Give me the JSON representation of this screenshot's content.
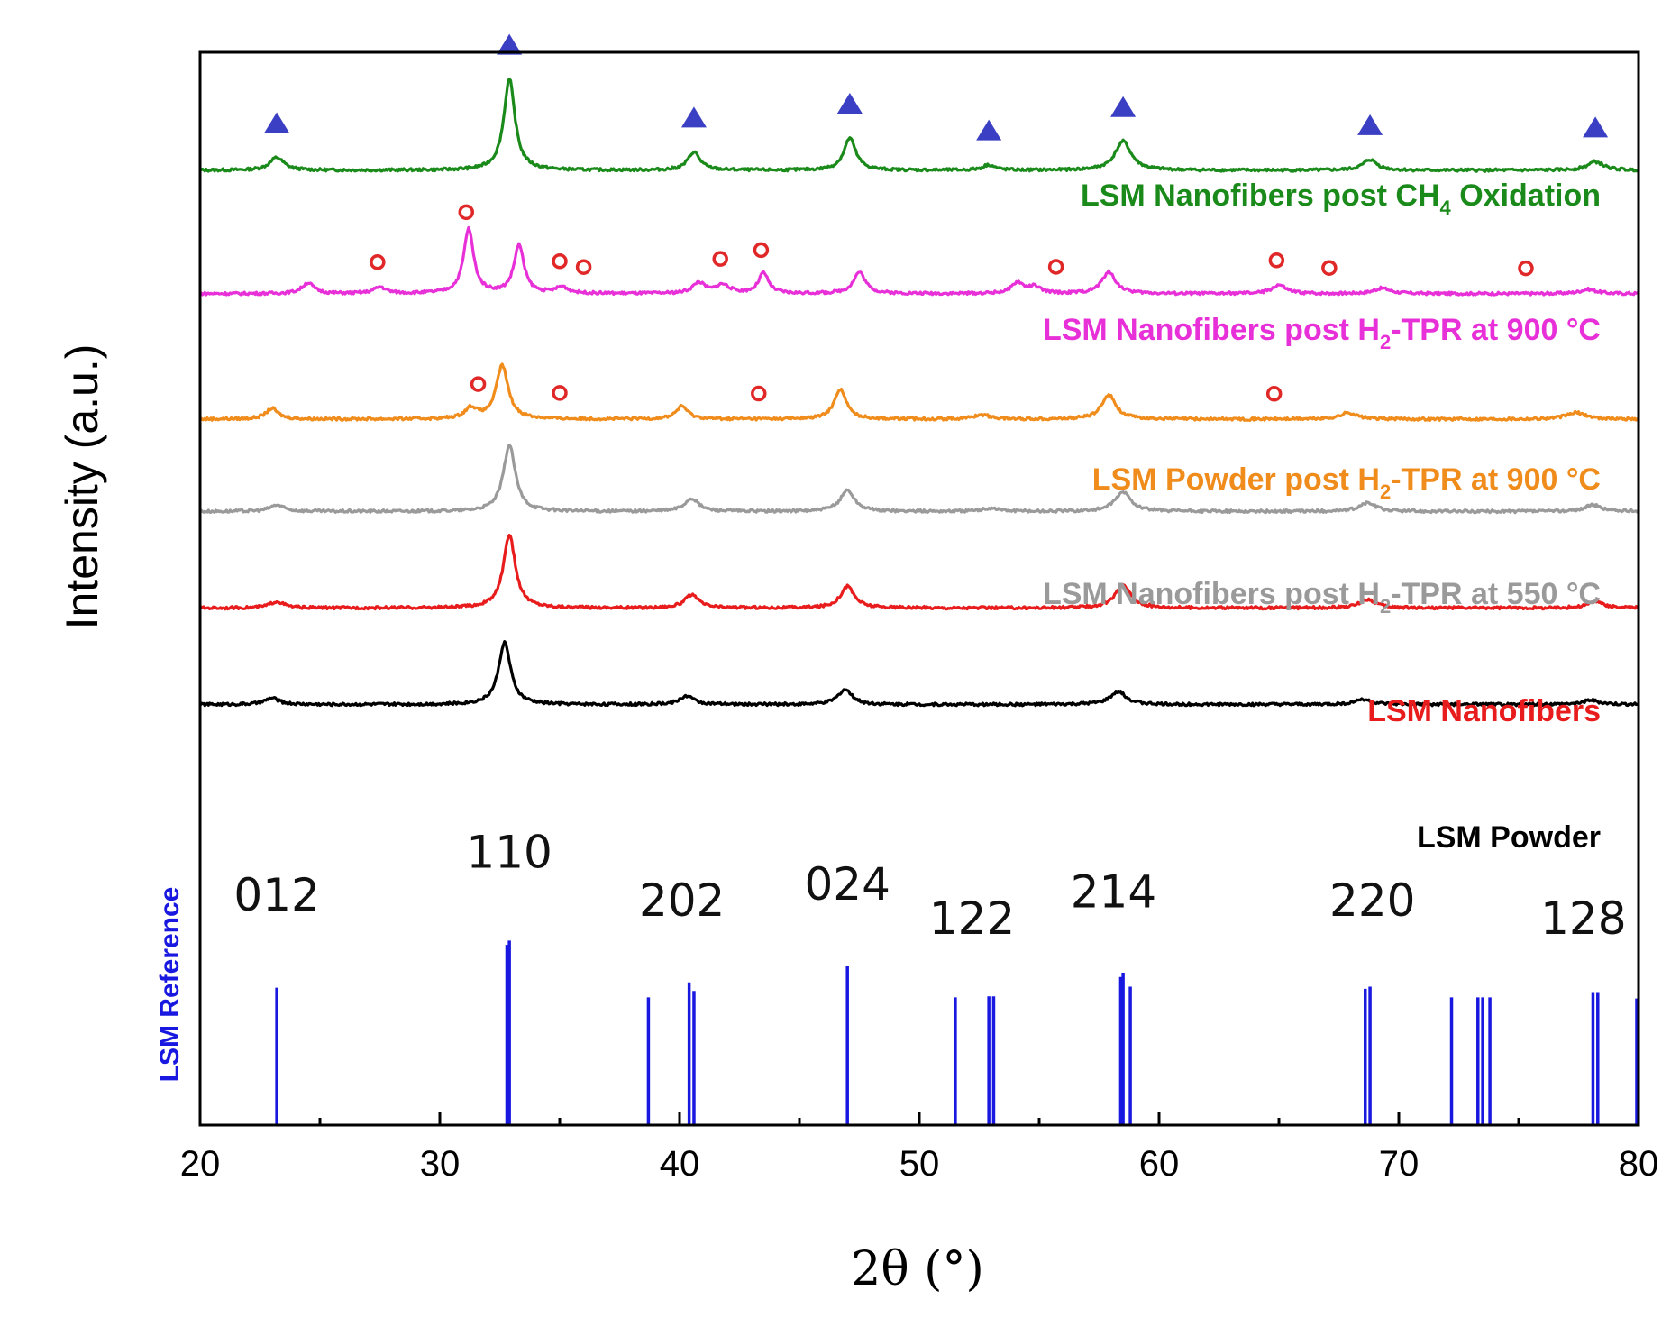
{
  "chart_data": {
    "type": "line",
    "xlabel": "2θ (°)",
    "ylabel": "Intensity (a.u.)",
    "xlim": [
      20,
      80
    ],
    "xticks": [
      20,
      30,
      40,
      50,
      60,
      70,
      80
    ],
    "series": [
      {
        "name": "LSM Nanofibers post CH4 Oxidation",
        "label_parts": [
          "LSM Nanofibers post CH",
          "4",
          " Oxidation"
        ],
        "color": "#1a8a1a",
        "baseline": 0.89,
        "peaks": [
          [
            23.2,
            0.012,
            0.35
          ],
          [
            32.9,
            0.085,
            0.28
          ],
          [
            40.6,
            0.017,
            0.3
          ],
          [
            47.1,
            0.03,
            0.3
          ],
          [
            52.9,
            0.005,
            0.3
          ],
          [
            58.5,
            0.027,
            0.4
          ],
          [
            68.8,
            0.01,
            0.35
          ],
          [
            78.2,
            0.008,
            0.4
          ]
        ],
        "markers": {
          "symbol": "triangle",
          "color": "#3b3fc4",
          "x": [
            23.2,
            32.9,
            40.6,
            47.1,
            52.9,
            58.5,
            68.8,
            78.2
          ]
        }
      },
      {
        "name": "LSM Nanofibers post H2-TPR at 900 °C",
        "label_parts": [
          "LSM Nanofibers post H",
          "2",
          "-TPR at 900 °C"
        ],
        "color": "#e830d8",
        "baseline": 0.775,
        "peaks": [
          [
            24.5,
            0.01,
            0.3
          ],
          [
            27.5,
            0.006,
            0.3
          ],
          [
            31.2,
            0.06,
            0.25
          ],
          [
            33.3,
            0.045,
            0.25
          ],
          [
            35.1,
            0.006,
            0.3
          ],
          [
            40.8,
            0.01,
            0.3
          ],
          [
            41.8,
            0.008,
            0.35
          ],
          [
            43.5,
            0.019,
            0.25
          ],
          [
            47.5,
            0.02,
            0.3
          ],
          [
            54.1,
            0.01,
            0.3
          ],
          [
            54.8,
            0.006,
            0.3
          ],
          [
            57.9,
            0.02,
            0.35
          ],
          [
            65.0,
            0.008,
            0.35
          ],
          [
            69.3,
            0.005,
            0.4
          ],
          [
            77.9,
            0.004,
            0.4
          ]
        ],
        "markers": {
          "symbol": "circle",
          "color": "#e02828",
          "x": [
            27.4,
            31.1,
            35.0,
            36.0,
            41.7,
            43.4,
            55.7,
            64.9,
            67.1,
            75.3
          ]
        }
      },
      {
        "name": "LSM Powder post H2-TPR at 900 °C",
        "label_parts": [
          "LSM Powder post H",
          "2",
          "-TPR at 900 °C"
        ],
        "color": "#f08c1c",
        "baseline": 0.658,
        "peaks": [
          [
            23.0,
            0.01,
            0.3
          ],
          [
            31.3,
            0.01,
            0.3
          ],
          [
            32.6,
            0.05,
            0.3
          ],
          [
            40.1,
            0.012,
            0.3
          ],
          [
            46.7,
            0.028,
            0.3
          ],
          [
            52.6,
            0.004,
            0.4
          ],
          [
            57.9,
            0.023,
            0.35
          ],
          [
            67.9,
            0.006,
            0.4
          ],
          [
            77.4,
            0.006,
            0.5
          ]
        ],
        "markers": {
          "symbol": "circle",
          "color": "#e02828",
          "x": [
            31.6,
            35.0,
            43.3,
            64.8
          ]
        }
      },
      {
        "name": "LSM Nanofibers post H2-TPR at 550 °C",
        "label_parts": [
          "LSM Nanofibers post H",
          "2",
          "-TPR at 550 °C"
        ],
        "color": "#9a9a9a",
        "baseline": 0.572,
        "peaks": [
          [
            23.2,
            0.006,
            0.35
          ],
          [
            32.9,
            0.062,
            0.3
          ],
          [
            40.5,
            0.012,
            0.35
          ],
          [
            47.0,
            0.02,
            0.35
          ],
          [
            53.0,
            0.003,
            0.4
          ],
          [
            58.5,
            0.018,
            0.4
          ],
          [
            68.7,
            0.008,
            0.4
          ],
          [
            78.1,
            0.006,
            0.4
          ]
        ],
        "markers": null
      },
      {
        "name": "LSM Nanofibers",
        "label_parts": [
          "LSM Nanofibers",
          "",
          ""
        ],
        "color": "#e81c1c",
        "baseline": 0.482,
        "peaks": [
          [
            23.2,
            0.006,
            0.35
          ],
          [
            32.9,
            0.068,
            0.3
          ],
          [
            40.5,
            0.012,
            0.35
          ],
          [
            47.0,
            0.02,
            0.35
          ],
          [
            58.5,
            0.021,
            0.4
          ],
          [
            68.7,
            0.008,
            0.4
          ],
          [
            78.2,
            0.006,
            0.4
          ]
        ],
        "markers": null
      },
      {
        "name": "LSM Powder",
        "label_parts": [
          "LSM Powder",
          "",
          ""
        ],
        "color": "#000000",
        "baseline": 0.392,
        "peaks": [
          [
            23.0,
            0.006,
            0.35
          ],
          [
            32.7,
            0.058,
            0.3
          ],
          [
            40.3,
            0.008,
            0.35
          ],
          [
            46.9,
            0.014,
            0.35
          ],
          [
            58.3,
            0.012,
            0.4
          ],
          [
            68.5,
            0.005,
            0.4
          ],
          [
            78.0,
            0.004,
            0.4
          ]
        ],
        "markers": null
      }
    ],
    "reference": {
      "name": "LSM Reference",
      "color": "#1818e0",
      "lines": [
        [
          23.2,
          0.128
        ],
        [
          32.8,
          0.168
        ],
        [
          32.9,
          0.172
        ],
        [
          38.7,
          0.119
        ],
        [
          40.4,
          0.133
        ],
        [
          40.6,
          0.125
        ],
        [
          47.0,
          0.148
        ],
        [
          51.5,
          0.119
        ],
        [
          52.9,
          0.12
        ],
        [
          53.1,
          0.12
        ],
        [
          58.4,
          0.138
        ],
        [
          58.5,
          0.142
        ],
        [
          58.8,
          0.129
        ],
        [
          68.6,
          0.127
        ],
        [
          68.8,
          0.129
        ],
        [
          72.2,
          0.119
        ],
        [
          73.3,
          0.119
        ],
        [
          73.5,
          0.119
        ],
        [
          73.8,
          0.119
        ],
        [
          78.1,
          0.124
        ],
        [
          78.3,
          0.124
        ],
        [
          80.0,
          0.118
        ]
      ],
      "hkl": [
        {
          "label": "012",
          "x": 23.2,
          "level": 0.2
        },
        {
          "label": "110",
          "x": 32.9,
          "level": 0.24
        },
        {
          "label": "202",
          "x": 40.1,
          "level": 0.195
        },
        {
          "label": "024",
          "x": 47.0,
          "level": 0.21
        },
        {
          "label": "122",
          "x": 52.2,
          "level": 0.178
        },
        {
          "label": "214",
          "x": 58.1,
          "level": 0.203
        },
        {
          "label": "220",
          "x": 68.9,
          "level": 0.195
        },
        {
          "label": "128",
          "x": 77.7,
          "level": 0.178
        }
      ]
    }
  }
}
